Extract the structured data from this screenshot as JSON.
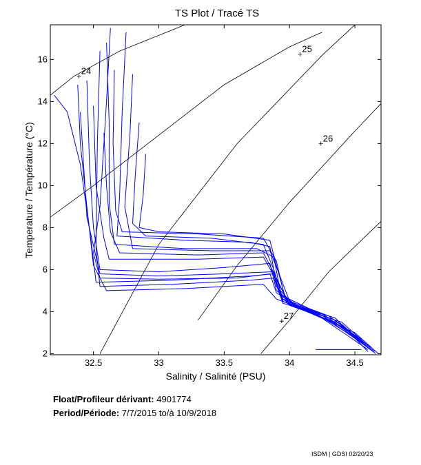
{
  "chart_data": {
    "type": "line",
    "title": "TS Plot / Tracé TS",
    "xlabel": "Salinity / Salinité (PSU)",
    "ylabel": "Temperature / Température (°C)",
    "xlim": [
      32.17,
      34.7
    ],
    "ylim": [
      1.95,
      17.65
    ],
    "xticks": [
      {
        "value": 32.5,
        "label": "32.5"
      },
      {
        "value": 33,
        "label": "33"
      },
      {
        "value": 33.5,
        "label": "33.5"
      },
      {
        "value": 34,
        "label": "34"
      },
      {
        "value": 34.5,
        "label": "34.5"
      }
    ],
    "yticks": [
      {
        "value": 2,
        "label": "2"
      },
      {
        "value": 4,
        "label": "4"
      },
      {
        "value": 6,
        "label": "6"
      },
      {
        "value": 8,
        "label": "8"
      },
      {
        "value": 10,
        "label": "10"
      },
      {
        "value": 12,
        "label": "12"
      },
      {
        "value": 14,
        "label": "14"
      },
      {
        "value": 16,
        "label": "16"
      }
    ],
    "grid": false,
    "line_color": "#0000ff",
    "isopycnal_color": "#000000",
    "isopycnals": [
      {
        "label": "",
        "points": [
          [
            32.55,
            2.0
          ],
          [
            33.0,
            7.2
          ],
          [
            33.6,
            12.0
          ],
          [
            34.25,
            16.2
          ],
          [
            34.5,
            17.65
          ]
        ]
      },
      {
        "label": "24",
        "label_at": [
          32.39,
          15.2
        ],
        "points": [
          [
            32.17,
            8.5
          ],
          [
            32.5,
            10.0
          ],
          [
            33.0,
            12.4
          ],
          [
            33.5,
            14.8
          ],
          [
            34.0,
            16.6
          ],
          [
            34.25,
            17.3
          ]
        ]
      },
      {
        "label": "",
        "points": [
          [
            32.17,
            14.3
          ],
          [
            32.35,
            15.2
          ],
          [
            32.7,
            16.4
          ],
          [
            33.2,
            17.65
          ]
        ]
      },
      {
        "label": "25",
        "label_at": [
          34.08,
          16.25
        ],
        "points": [
          [
            33.3,
            3.6
          ],
          [
            33.6,
            6.2
          ],
          [
            34.0,
            9.2
          ],
          [
            34.5,
            12.6
          ],
          [
            34.7,
            13.9
          ]
        ]
      },
      {
        "label": "26",
        "label_at": [
          34.24,
          12.0
        ],
        "points": [
          [
            33.78,
            2.0
          ],
          [
            34.0,
            3.6
          ],
          [
            34.3,
            5.9
          ],
          [
            34.7,
            8.3
          ]
        ]
      },
      {
        "label": "27",
        "label_at": [
          33.94,
          3.55
        ],
        "points": []
      }
    ],
    "series": [
      {
        "values_xy": [
          [
            32.63,
            17.5
          ],
          [
            32.6,
            14.0
          ],
          [
            32.55,
            9.0
          ],
          [
            32.5,
            6.8
          ],
          [
            32.55,
            5.6
          ],
          [
            33.0,
            5.55
          ],
          [
            33.6,
            5.6
          ],
          [
            33.85,
            5.8
          ],
          [
            33.9,
            4.9
          ],
          [
            34.05,
            4.3
          ],
          [
            34.35,
            3.7
          ],
          [
            34.6,
            2.1
          ]
        ]
      },
      {
        "values_xy": [
          [
            32.75,
            17.3
          ],
          [
            32.72,
            13.5
          ],
          [
            32.7,
            9.5
          ],
          [
            32.68,
            7.6
          ],
          [
            33.2,
            7.4
          ],
          [
            33.7,
            7.3
          ],
          [
            33.85,
            7.1
          ],
          [
            33.9,
            5.2
          ],
          [
            34.05,
            4.2
          ],
          [
            34.4,
            3.5
          ],
          [
            34.65,
            2.1
          ]
        ]
      },
      {
        "values_xy": [
          [
            32.45,
            15.0
          ],
          [
            32.47,
            11.0
          ],
          [
            32.5,
            8.0
          ],
          [
            32.55,
            6.0
          ],
          [
            33.0,
            5.9
          ],
          [
            33.5,
            6.1
          ],
          [
            33.85,
            6.3
          ],
          [
            33.9,
            5.0
          ],
          [
            34.1,
            4.1
          ],
          [
            34.5,
            3.0
          ],
          [
            34.68,
            2.0
          ]
        ]
      },
      {
        "values_xy": [
          [
            32.85,
            13.0
          ],
          [
            32.82,
            10.5
          ],
          [
            32.8,
            8.2
          ],
          [
            32.9,
            7.6
          ],
          [
            33.4,
            7.5
          ],
          [
            33.8,
            7.2
          ],
          [
            33.88,
            6.0
          ],
          [
            33.95,
            4.6
          ],
          [
            34.2,
            3.9
          ],
          [
            34.55,
            2.6
          ]
        ]
      },
      {
        "values_xy": [
          [
            32.55,
            16.4
          ],
          [
            32.53,
            12.0
          ],
          [
            32.52,
            7.0
          ],
          [
            32.55,
            5.2
          ],
          [
            33.1,
            5.3
          ],
          [
            33.7,
            5.5
          ],
          [
            33.88,
            5.6
          ],
          [
            33.95,
            4.4
          ],
          [
            34.3,
            3.8
          ],
          [
            34.62,
            2.3
          ]
        ]
      },
      {
        "values_xy": [
          [
            32.38,
            14.8
          ],
          [
            32.4,
            12.0
          ],
          [
            32.45,
            9.0
          ],
          [
            32.5,
            6.2
          ],
          [
            32.6,
            5.0
          ],
          [
            33.2,
            5.1
          ],
          [
            33.8,
            5.3
          ],
          [
            33.9,
            4.6
          ],
          [
            34.2,
            3.9
          ],
          [
            34.6,
            2.2
          ]
        ]
      },
      {
        "values_xy": [
          [
            32.66,
            15.5
          ],
          [
            32.65,
            12.0
          ],
          [
            32.67,
            8.8
          ],
          [
            32.72,
            7.8
          ],
          [
            33.3,
            7.7
          ],
          [
            33.8,
            7.5
          ],
          [
            33.9,
            6.4
          ],
          [
            33.97,
            4.5
          ],
          [
            34.25,
            3.9
          ],
          [
            34.58,
            2.5
          ]
        ]
      },
      {
        "values_xy": [
          [
            32.5,
            13.8
          ],
          [
            32.52,
            10.0
          ],
          [
            32.58,
            7.5
          ],
          [
            32.62,
            6.5
          ],
          [
            33.3,
            6.5
          ],
          [
            33.8,
            6.6
          ],
          [
            33.9,
            5.5
          ],
          [
            34.0,
            4.4
          ],
          [
            34.35,
            3.6
          ],
          [
            34.64,
            2.1
          ]
        ]
      },
      {
        "values_xy": [
          [
            32.8,
            15.3
          ],
          [
            32.78,
            12.5
          ],
          [
            32.74,
            9.0
          ],
          [
            32.8,
            7.0
          ],
          [
            33.4,
            6.9
          ],
          [
            33.85,
            6.9
          ],
          [
            33.92,
            5.8
          ],
          [
            34.0,
            4.5
          ],
          [
            34.3,
            3.8
          ],
          [
            34.6,
            2.4
          ]
        ]
      },
      {
        "values_xy": [
          [
            32.4,
            13.5
          ],
          [
            32.42,
            11.5
          ],
          [
            32.45,
            8.5
          ],
          [
            32.55,
            5.8
          ],
          [
            33.0,
            5.7
          ],
          [
            33.5,
            5.8
          ],
          [
            33.87,
            5.9
          ],
          [
            33.93,
            4.8
          ],
          [
            34.2,
            4.0
          ],
          [
            34.55,
            2.7
          ]
        ]
      },
      {
        "values_xy": [
          [
            32.6,
            16.8
          ],
          [
            32.62,
            13.0
          ],
          [
            32.62,
            9.2
          ],
          [
            32.66,
            7.2
          ],
          [
            33.2,
            7.0
          ],
          [
            33.75,
            7.0
          ],
          [
            33.88,
            6.6
          ],
          [
            33.94,
            4.6
          ],
          [
            34.3,
            3.7
          ],
          [
            34.66,
            2.0
          ]
        ]
      },
      {
        "values_xy": [
          [
            32.9,
            11.5
          ],
          [
            32.88,
            9.5
          ],
          [
            32.85,
            8.0
          ],
          [
            33.0,
            7.8
          ],
          [
            33.5,
            7.7
          ],
          [
            33.85,
            7.4
          ],
          [
            33.9,
            6.2
          ],
          [
            33.98,
            4.4
          ],
          [
            34.4,
            3.3
          ],
          [
            34.62,
            2.2
          ]
        ]
      },
      {
        "values_xy": [
          [
            32.2,
            14.3
          ],
          [
            32.3,
            13.5
          ],
          [
            32.4,
            11.0
          ],
          [
            32.48,
            7.5
          ],
          [
            32.52,
            5.4
          ],
          [
            33.1,
            5.5
          ],
          [
            33.7,
            5.7
          ],
          [
            33.88,
            5.8
          ],
          [
            33.95,
            4.5
          ],
          [
            34.3,
            3.6
          ],
          [
            34.62,
            2.2
          ]
        ]
      },
      {
        "values_xy": [
          [
            32.58,
            12.5
          ],
          [
            32.6,
            10.0
          ],
          [
            32.63,
            7.8
          ],
          [
            32.7,
            6.8
          ],
          [
            33.3,
            6.7
          ],
          [
            33.8,
            6.8
          ],
          [
            33.9,
            5.6
          ],
          [
            34.0,
            4.3
          ],
          [
            34.4,
            3.4
          ],
          [
            34.64,
            2.1
          ]
        ]
      }
    ],
    "annotation_line": {
      "points": [
        [
          34.2,
          2.2
        ],
        [
          34.55,
          2.2
        ]
      ]
    }
  },
  "info": {
    "float_label": "Float/Profileur dérivant:",
    "float_value": "4901774",
    "period_label": "Period/Période:",
    "period_value": "7/7/2015  to/à  10/9/2018"
  },
  "footer": "ISDM | GDSI  02/20/23"
}
